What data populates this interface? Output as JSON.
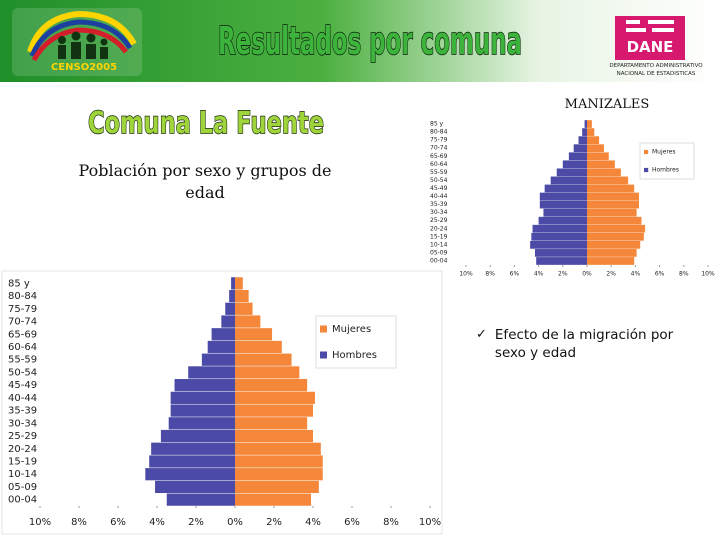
{
  "header": {
    "logo_text": "CENSO2005",
    "title": "Resultados por comuna",
    "agency_logo": "DANE",
    "agency_name": [
      "DEPARTAMENTO ADMINISTRATIVO",
      "NACIONAL DE ESTADISTICAS"
    ]
  },
  "subtitle": "Comuna La Fuente",
  "description": "Población por sexo y grupos de edad",
  "bullet": "Efecto de la migración por sexo y edad",
  "chart_data": [
    {
      "type": "pyramid",
      "title": "MANIZALES",
      "categories": [
        "00-04",
        "05-09",
        "10-14",
        "15-19",
        "20-24",
        "25-29",
        "30-34",
        "35-39",
        "40-44",
        "45-49",
        "50-54",
        "55-59",
        "60-64",
        "65-69",
        "70-74",
        "75-79",
        "80-84",
        "85 y"
      ],
      "series": [
        {
          "name": "Mujeres",
          "color": "#f4873a",
          "side": "right",
          "values": [
            3.9,
            4.1,
            4.4,
            4.7,
            4.8,
            4.5,
            4.1,
            4.3,
            4.3,
            3.9,
            3.4,
            2.8,
            2.3,
            1.8,
            1.4,
            1.0,
            0.6,
            0.4
          ]
        },
        {
          "name": "Hombres",
          "color": "#4b4aa6",
          "side": "left",
          "values": [
            4.2,
            4.3,
            4.7,
            4.6,
            4.5,
            4.0,
            3.6,
            3.9,
            3.9,
            3.5,
            3.0,
            2.5,
            2.0,
            1.5,
            1.1,
            0.7,
            0.4,
            0.2
          ]
        }
      ],
      "xlim": [
        -10,
        10
      ],
      "xticks": [
        {
          "value": -10,
          "label": "10%"
        },
        {
          "value": -8,
          "label": "8%"
        },
        {
          "value": -6,
          "label": "6%"
        },
        {
          "value": -4,
          "label": "4%"
        },
        {
          "value": -2,
          "label": "2%"
        },
        {
          "value": 0,
          "label": "0%"
        },
        {
          "value": 2,
          "label": "2%"
        },
        {
          "value": 4,
          "label": "4%"
        },
        {
          "value": 6,
          "label": "6%"
        },
        {
          "value": 8,
          "label": "8%"
        },
        {
          "value": 10,
          "label": "10%"
        }
      ],
      "legend": "upper right"
    },
    {
      "type": "pyramid",
      "categories": [
        "00-04",
        "05-09",
        "10-14",
        "15-19",
        "20-24",
        "25-29",
        "30-34",
        "35-39",
        "40-44",
        "45-49",
        "50-54",
        "55-59",
        "60-64",
        "65-69",
        "70-74",
        "75-79",
        "80-84",
        "85 y"
      ],
      "series": [
        {
          "name": "Mujeres",
          "color": "#f4873a",
          "side": "right",
          "values": [
            3.9,
            4.3,
            4.5,
            4.5,
            4.4,
            4.0,
            3.7,
            4.0,
            4.1,
            3.7,
            3.3,
            2.9,
            2.4,
            1.9,
            1.3,
            0.9,
            0.7,
            0.4
          ]
        },
        {
          "name": "Hombres",
          "color": "#4b4aa6",
          "side": "left",
          "values": [
            3.5,
            4.1,
            4.6,
            4.4,
            4.3,
            3.8,
            3.4,
            3.3,
            3.3,
            3.1,
            2.4,
            1.7,
            1.4,
            1.2,
            0.7,
            0.5,
            0.3,
            0.2
          ]
        }
      ],
      "xlim": [
        -10,
        10
      ],
      "xticks": [
        {
          "value": -10,
          "label": "10%"
        },
        {
          "value": -8,
          "label": "8%"
        },
        {
          "value": -6,
          "label": "6%"
        },
        {
          "value": -4,
          "label": "4%"
        },
        {
          "value": -2,
          "label": "2%"
        },
        {
          "value": 0,
          "label": "0%"
        },
        {
          "value": 2,
          "label": "2%"
        },
        {
          "value": 4,
          "label": "4%"
        },
        {
          "value": 6,
          "label": "6%"
        },
        {
          "value": 8,
          "label": "8%"
        },
        {
          "value": 10,
          "label": "10%"
        }
      ],
      "legend": "upper right"
    }
  ]
}
